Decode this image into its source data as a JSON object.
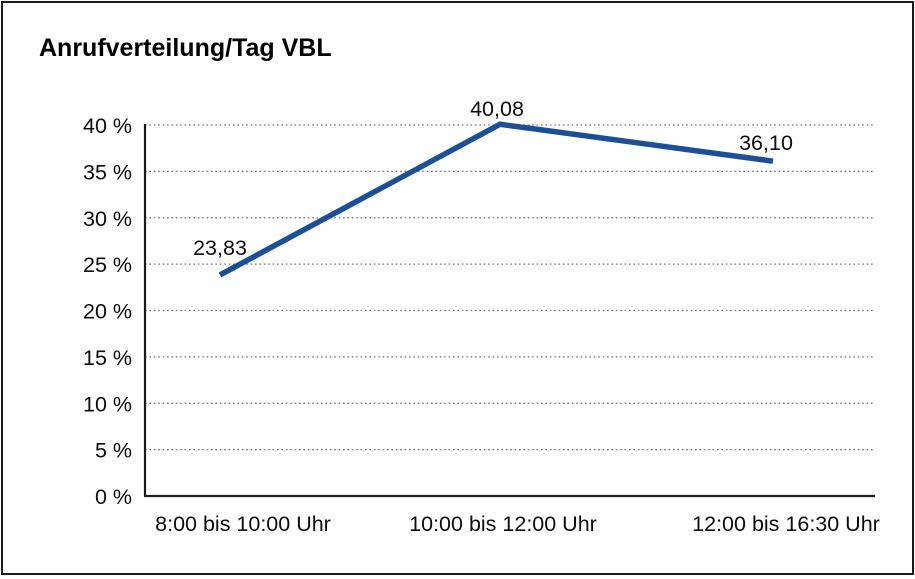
{
  "chart_data": {
    "type": "line",
    "title": "Anrufverteilung/Tag VBL",
    "categories": [
      "8:00 bis 10:00 Uhr",
      "10:00 bis 12:00 Uhr",
      "12:00 bis 16:30 Uhr"
    ],
    "values": [
      23.83,
      40.08,
      36.1
    ],
    "value_labels": [
      "23,83",
      "40,08",
      "36,10"
    ],
    "series_name": "Anrufverteilung/Tag VBL",
    "xlabel": "",
    "ylabel": "",
    "ylim": [
      0,
      40
    ],
    "y_tick_values": [
      0,
      5,
      10,
      15,
      20,
      25,
      30,
      35,
      40
    ],
    "y_tick_labels": [
      "0 %",
      "5 %",
      "10 %",
      "15 %",
      "20 %",
      "25 %",
      "30 %",
      "35 %",
      "40 %"
    ],
    "grid": "horizontal-dotted",
    "legend": "none",
    "colors": {
      "line": "#1b4f97",
      "axis": "#1a1a1a",
      "gridline": "#6f6f6f",
      "text": "#0d0d0d",
      "background": "#ffffff",
      "frame_border": "#1a1a1a"
    }
  }
}
